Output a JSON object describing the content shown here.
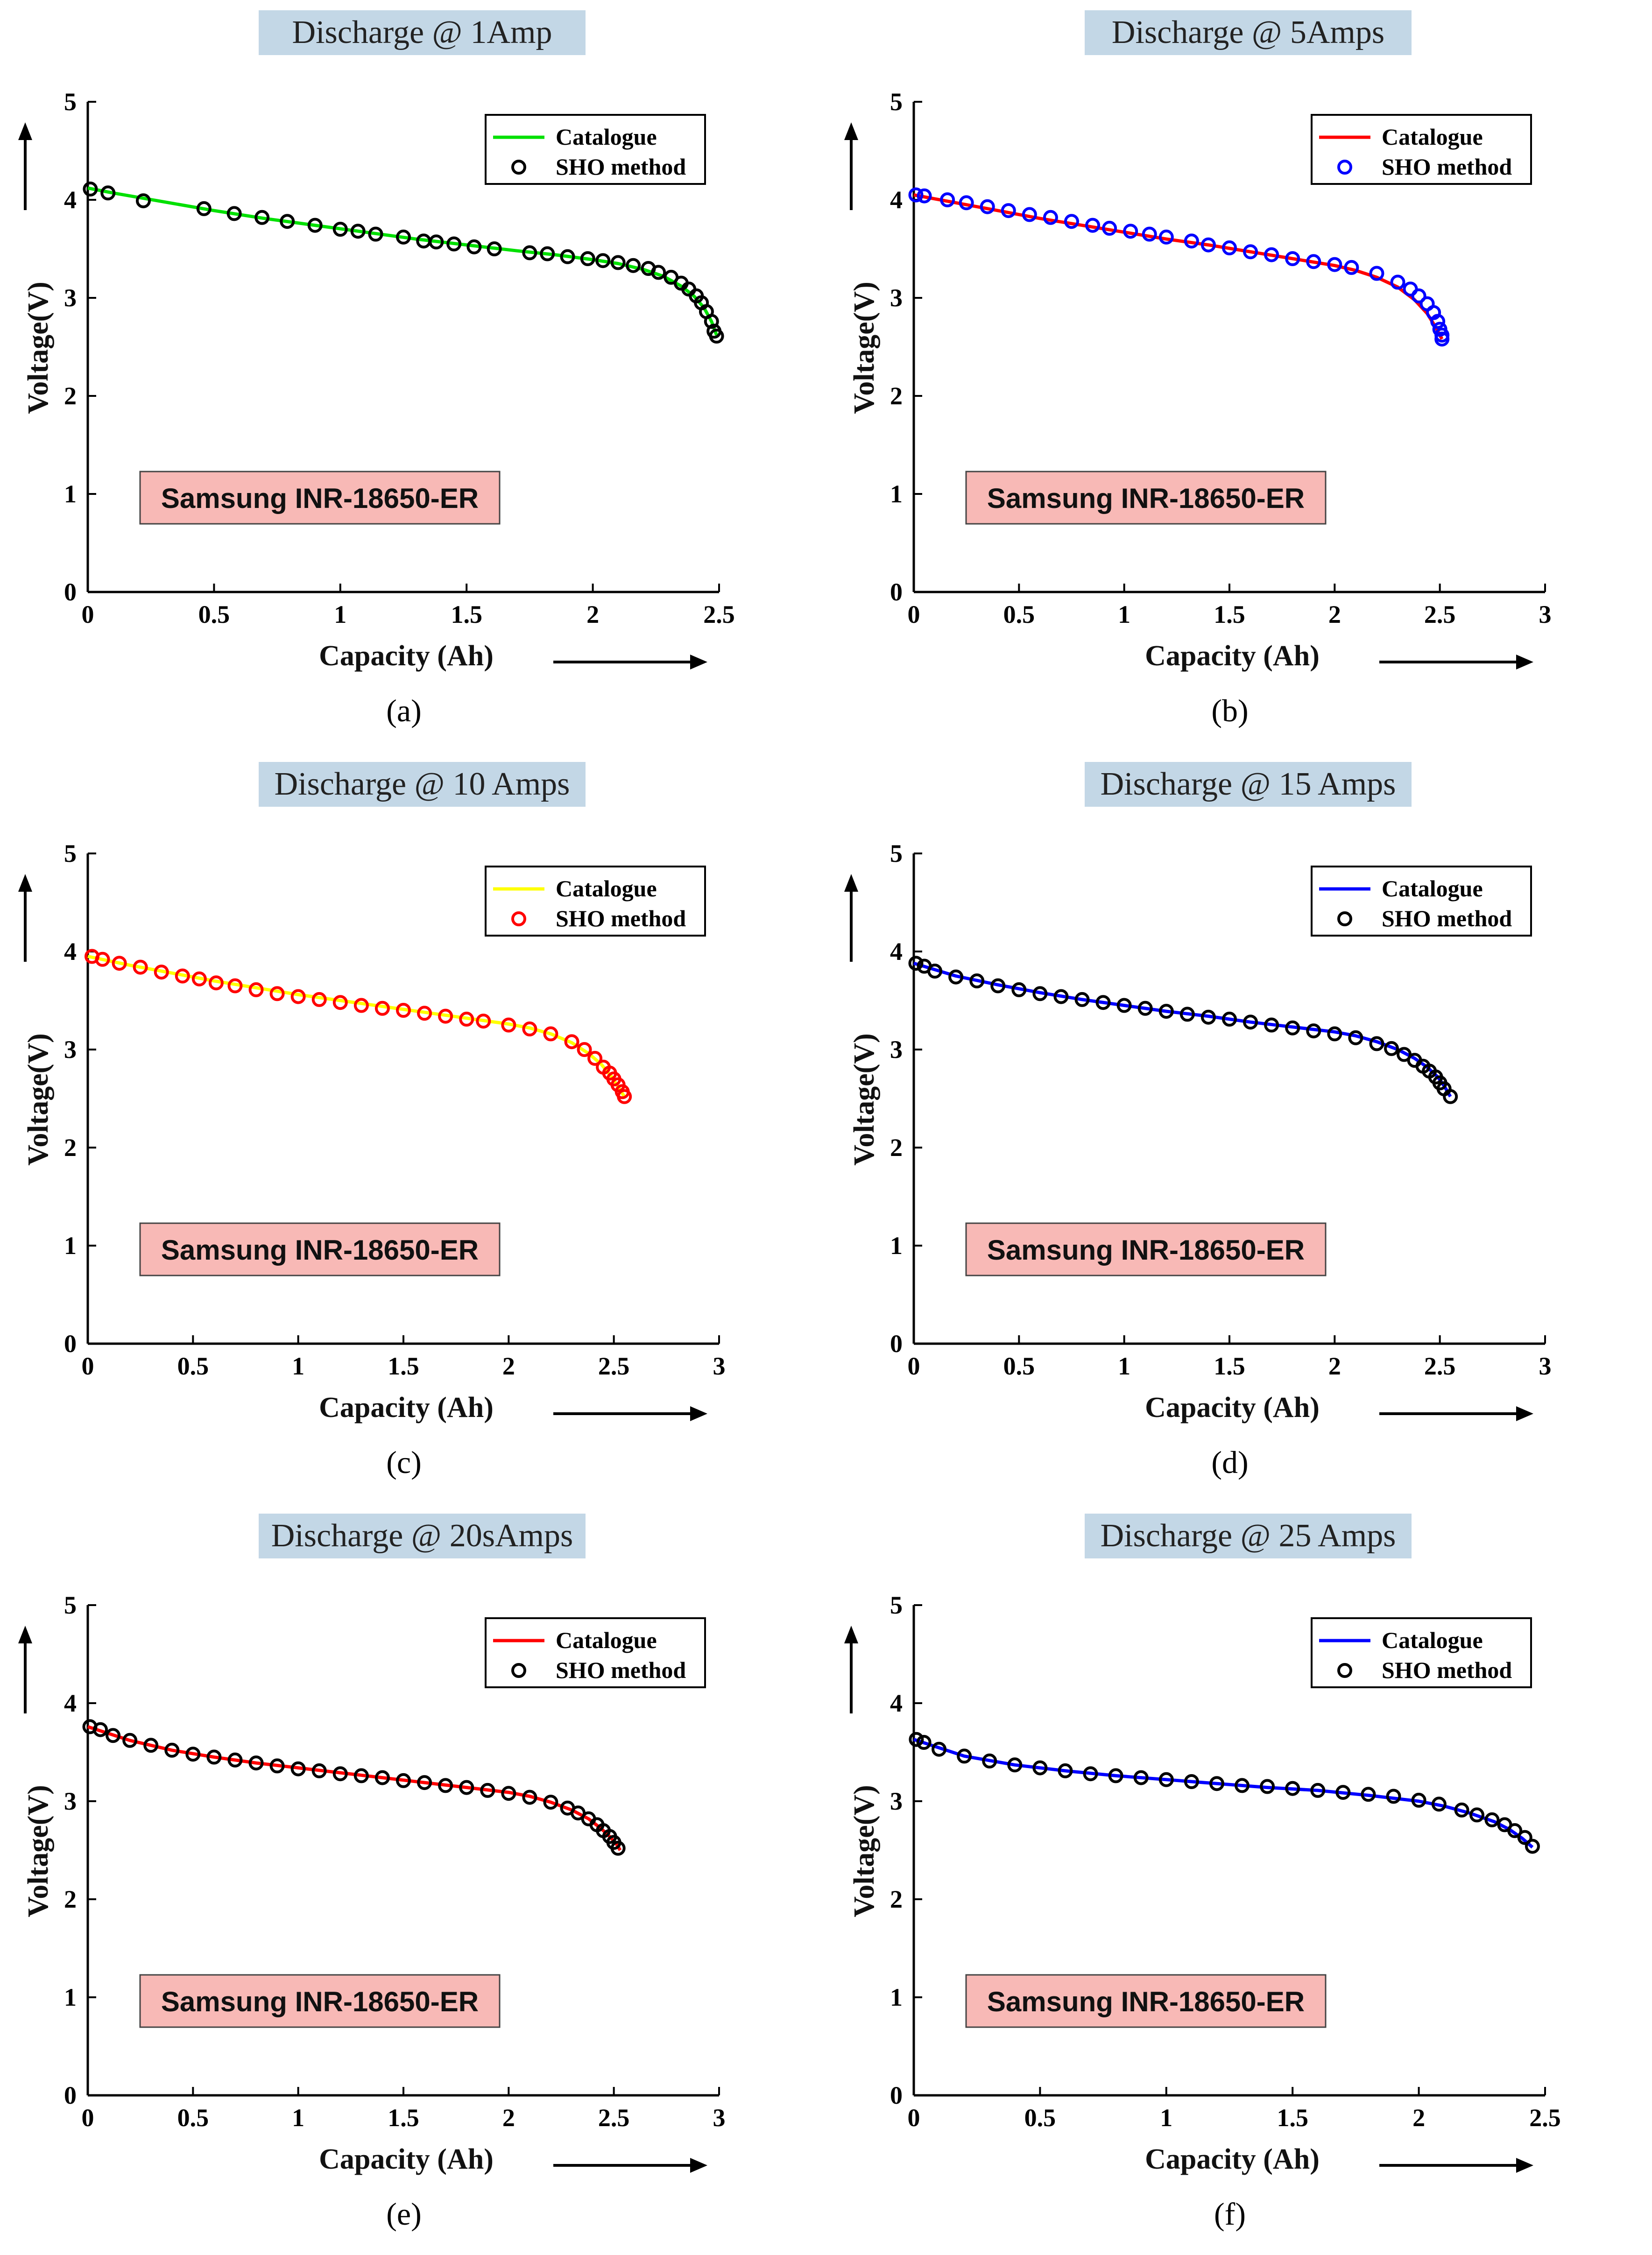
{
  "chart_data": [
    {
      "type": "line",
      "panel": "a",
      "caption": "(a)",
      "title": "Discharge @ 1Amp",
      "xlabel": "Capacity (Ah)",
      "ylabel": "Voltage(V)",
      "xlim": [
        0,
        2.5
      ],
      "ylim": [
        0,
        5
      ],
      "xticks": [
        0,
        0.5,
        1,
        1.5,
        2,
        2.5
      ],
      "xtick_labels": [
        "0",
        "0.5",
        "1",
        "1.5",
        "2",
        "2.5"
      ],
      "yticks": [
        0,
        1,
        2,
        3,
        4,
        5
      ],
      "ytick_labels": [
        "0",
        "1",
        "2",
        "3",
        "4",
        "5"
      ],
      "annotation": "Samsung INR-18650-ER",
      "legend_position": "top-right",
      "line_color": "#00e000",
      "marker_color": "#000000",
      "series": [
        {
          "name": "Catalogue",
          "x": [
            0,
            0.1,
            0.3,
            0.5,
            0.7,
            0.9,
            1.1,
            1.3,
            1.5,
            1.7,
            1.85,
            2.0,
            2.1,
            2.2,
            2.28,
            2.35,
            2.4,
            2.44,
            2.47,
            2.49
          ],
          "y": [
            4.12,
            4.07,
            3.98,
            3.89,
            3.81,
            3.74,
            3.67,
            3.6,
            3.54,
            3.48,
            3.44,
            3.39,
            3.35,
            3.29,
            3.22,
            3.12,
            3.02,
            2.9,
            2.76,
            2.62
          ]
        },
        {
          "name": "SHO method",
          "x": [
            0.01,
            0.08,
            0.22,
            0.46,
            0.58,
            0.69,
            0.79,
            0.9,
            1.0,
            1.07,
            1.14,
            1.25,
            1.33,
            1.38,
            1.45,
            1.53,
            1.61,
            1.75,
            1.82,
            1.9,
            1.98,
            2.04,
            2.1,
            2.16,
            2.22,
            2.26,
            2.31,
            2.35,
            2.38,
            2.41,
            2.43,
            2.45,
            2.47,
            2.48,
            2.49
          ],
          "y": [
            4.11,
            4.07,
            3.99,
            3.91,
            3.86,
            3.82,
            3.78,
            3.74,
            3.7,
            3.68,
            3.65,
            3.62,
            3.58,
            3.57,
            3.55,
            3.52,
            3.5,
            3.46,
            3.45,
            3.42,
            3.4,
            3.38,
            3.36,
            3.33,
            3.3,
            3.26,
            3.21,
            3.15,
            3.09,
            3.02,
            2.95,
            2.86,
            2.76,
            2.66,
            2.61
          ]
        }
      ]
    },
    {
      "type": "line",
      "panel": "b",
      "caption": "(b)",
      "title": "Discharge @ 5Amps",
      "xlabel": "Capacity (Ah)",
      "ylabel": "Voltage(V)",
      "xlim": [
        0,
        3
      ],
      "ylim": [
        0,
        5
      ],
      "xticks": [
        0,
        0.5,
        1,
        1.5,
        2,
        2.5,
        3
      ],
      "xtick_labels": [
        "0",
        "0.5",
        "1",
        "1.5",
        "2",
        "2.5",
        "3"
      ],
      "yticks": [
        0,
        1,
        2,
        3,
        4,
        5
      ],
      "ytick_labels": [
        "0",
        "1",
        "2",
        "3",
        "4",
        "5"
      ],
      "annotation": "Samsung INR-18650-ER",
      "legend_position": "top-right",
      "line_color": "#ff0000",
      "marker_color": "#0000ff",
      "series": [
        {
          "name": "Catalogue",
          "x": [
            0,
            0.2,
            0.4,
            0.6,
            0.8,
            1.0,
            1.2,
            1.4,
            1.6,
            1.8,
            2.0,
            2.1,
            2.2,
            2.3,
            2.38,
            2.44,
            2.48,
            2.5,
            2.51
          ],
          "y": [
            4.05,
            3.97,
            3.89,
            3.81,
            3.74,
            3.67,
            3.6,
            3.54,
            3.47,
            3.4,
            3.33,
            3.28,
            3.21,
            3.11,
            2.98,
            2.84,
            2.7,
            2.62,
            2.58
          ]
        },
        {
          "name": "SHO method",
          "x": [
            0.01,
            0.05,
            0.16,
            0.25,
            0.35,
            0.45,
            0.55,
            0.65,
            0.75,
            0.85,
            0.93,
            1.03,
            1.12,
            1.2,
            1.32,
            1.4,
            1.5,
            1.6,
            1.7,
            1.8,
            1.9,
            2.0,
            2.08,
            2.2,
            2.3,
            2.36,
            2.4,
            2.44,
            2.47,
            2.49,
            2.5,
            2.51,
            2.51
          ],
          "y": [
            4.05,
            4.04,
            4.0,
            3.97,
            3.93,
            3.89,
            3.85,
            3.82,
            3.78,
            3.74,
            3.71,
            3.68,
            3.65,
            3.62,
            3.58,
            3.54,
            3.51,
            3.47,
            3.44,
            3.4,
            3.37,
            3.34,
            3.31,
            3.25,
            3.16,
            3.09,
            3.02,
            2.94,
            2.85,
            2.76,
            2.68,
            2.62,
            2.58
          ]
        }
      ]
    },
    {
      "type": "line",
      "panel": "c",
      "caption": "(c)",
      "title": "Discharge @ 10 Amps",
      "xlabel": "Capacity (Ah)",
      "ylabel": "Voltage(V)",
      "xlim": [
        0,
        3
      ],
      "ylim": [
        0,
        5
      ],
      "xticks": [
        0,
        0.5,
        1,
        1.5,
        2,
        2.5,
        3
      ],
      "xtick_labels": [
        "0",
        "0.5",
        "1",
        "1.5",
        "2",
        "2.5",
        "3"
      ],
      "yticks": [
        0,
        1,
        2,
        3,
        4,
        5
      ],
      "ytick_labels": [
        "0",
        "1",
        "2",
        "3",
        "4",
        "5"
      ],
      "annotation": "Samsung INR-18650-ER",
      "legend_position": "top-right",
      "line_color": "#ffff00",
      "marker_color": "#ff0000",
      "series": [
        {
          "name": "Catalogue",
          "x": [
            0,
            0.2,
            0.4,
            0.6,
            0.8,
            1.0,
            1.2,
            1.4,
            1.6,
            1.8,
            2.0,
            2.1,
            2.2,
            2.3,
            2.38,
            2.44,
            2.49,
            2.52,
            2.55
          ],
          "y": [
            3.95,
            3.86,
            3.78,
            3.7,
            3.63,
            3.56,
            3.5,
            3.44,
            3.38,
            3.32,
            3.26,
            3.22,
            3.16,
            3.07,
            2.96,
            2.85,
            2.72,
            2.62,
            2.52
          ]
        },
        {
          "name": "SHO method",
          "x": [
            0.02,
            0.07,
            0.15,
            0.25,
            0.35,
            0.45,
            0.53,
            0.61,
            0.7,
            0.8,
            0.9,
            1.0,
            1.1,
            1.2,
            1.3,
            1.4,
            1.5,
            1.6,
            1.7,
            1.8,
            1.88,
            2.0,
            2.1,
            2.2,
            2.3,
            2.36,
            2.41,
            2.45,
            2.48,
            2.5,
            2.52,
            2.54,
            2.55
          ],
          "y": [
            3.95,
            3.92,
            3.88,
            3.84,
            3.79,
            3.75,
            3.72,
            3.68,
            3.65,
            3.61,
            3.57,
            3.54,
            3.51,
            3.48,
            3.45,
            3.42,
            3.4,
            3.37,
            3.34,
            3.31,
            3.29,
            3.25,
            3.21,
            3.16,
            3.08,
            3.0,
            2.91,
            2.82,
            2.76,
            2.7,
            2.64,
            2.57,
            2.52
          ]
        }
      ]
    },
    {
      "type": "line",
      "panel": "d",
      "caption": "(d)",
      "title": "Discharge @ 15 Amps",
      "xlabel": "Capacity (Ah)",
      "ylabel": "Voltage(V)",
      "xlim": [
        0,
        3
      ],
      "ylim": [
        0,
        5
      ],
      "xticks": [
        0,
        0.5,
        1,
        1.5,
        2,
        2.5,
        3
      ],
      "xtick_labels": [
        "0",
        "0.5",
        "1",
        "1.5",
        "2",
        "2.5",
        "3"
      ],
      "yticks": [
        0,
        1,
        2,
        3,
        4,
        5
      ],
      "ytick_labels": [
        "0",
        "1",
        "2",
        "3",
        "4",
        "5"
      ],
      "annotation": "Samsung INR-18650-ER",
      "legend_position": "top-right",
      "line_color": "#0000ff",
      "marker_color": "#000000",
      "series": [
        {
          "name": "Catalogue",
          "x": [
            0,
            0.2,
            0.4,
            0.6,
            0.8,
            1.0,
            1.2,
            1.4,
            1.6,
            1.8,
            2.0,
            2.1,
            2.2,
            2.3,
            2.38,
            2.44,
            2.49,
            2.52,
            2.55
          ],
          "y": [
            3.88,
            3.75,
            3.66,
            3.58,
            3.51,
            3.45,
            3.39,
            3.34,
            3.28,
            3.23,
            3.18,
            3.14,
            3.08,
            3.0,
            2.91,
            2.82,
            2.72,
            2.63,
            2.52
          ]
        },
        {
          "name": "SHO method",
          "x": [
            0.01,
            0.05,
            0.1,
            0.2,
            0.3,
            0.4,
            0.5,
            0.6,
            0.7,
            0.8,
            0.9,
            1.0,
            1.1,
            1.2,
            1.3,
            1.4,
            1.5,
            1.6,
            1.7,
            1.8,
            1.9,
            2.0,
            2.1,
            2.2,
            2.27,
            2.33,
            2.38,
            2.42,
            2.45,
            2.48,
            2.5,
            2.52,
            2.55
          ],
          "y": [
            3.88,
            3.85,
            3.8,
            3.74,
            3.7,
            3.65,
            3.61,
            3.57,
            3.54,
            3.51,
            3.48,
            3.45,
            3.42,
            3.39,
            3.36,
            3.33,
            3.31,
            3.28,
            3.25,
            3.22,
            3.19,
            3.16,
            3.12,
            3.06,
            3.01,
            2.95,
            2.89,
            2.83,
            2.78,
            2.72,
            2.66,
            2.6,
            2.52
          ]
        }
      ]
    },
    {
      "type": "line",
      "panel": "e",
      "caption": "(e)",
      "title": "Discharge @ 20sAmps",
      "xlabel": "Capacity (Ah)",
      "ylabel": "Voltage(V)",
      "xlim": [
        0,
        3
      ],
      "ylim": [
        0,
        5
      ],
      "xticks": [
        0,
        0.5,
        1,
        1.5,
        2,
        2.5,
        3
      ],
      "xtick_labels": [
        "0",
        "0.5",
        "1",
        "1.5",
        "2",
        "2.5",
        "3"
      ],
      "yticks": [
        0,
        1,
        2,
        3,
        4,
        5
      ],
      "ytick_labels": [
        "0",
        "1",
        "2",
        "3",
        "4",
        "5"
      ],
      "annotation": "Samsung INR-18650-ER",
      "legend_position": "top-right",
      "line_color": "#ff0000",
      "marker_color": "#000000",
      "series": [
        {
          "name": "Catalogue",
          "x": [
            0,
            0.2,
            0.4,
            0.6,
            0.8,
            1.0,
            1.2,
            1.4,
            1.6,
            1.8,
            2.0,
            2.1,
            2.2,
            2.3,
            2.38,
            2.44,
            2.48,
            2.51,
            2.53
          ],
          "y": [
            3.76,
            3.62,
            3.52,
            3.45,
            3.39,
            3.34,
            3.29,
            3.24,
            3.19,
            3.14,
            3.09,
            3.05,
            2.99,
            2.91,
            2.82,
            2.72,
            2.64,
            2.57,
            2.5
          ]
        },
        {
          "name": "SHO method",
          "x": [
            0.01,
            0.06,
            0.12,
            0.2,
            0.3,
            0.4,
            0.5,
            0.6,
            0.7,
            0.8,
            0.9,
            1.0,
            1.1,
            1.2,
            1.3,
            1.4,
            1.5,
            1.6,
            1.7,
            1.8,
            1.9,
            2.0,
            2.1,
            2.2,
            2.28,
            2.33,
            2.38,
            2.42,
            2.45,
            2.48,
            2.5,
            2.52
          ],
          "y": [
            3.76,
            3.73,
            3.67,
            3.62,
            3.57,
            3.52,
            3.48,
            3.45,
            3.42,
            3.39,
            3.36,
            3.33,
            3.31,
            3.28,
            3.26,
            3.24,
            3.21,
            3.19,
            3.16,
            3.14,
            3.11,
            3.08,
            3.04,
            2.99,
            2.93,
            2.88,
            2.82,
            2.76,
            2.7,
            2.64,
            2.58,
            2.52
          ]
        }
      ]
    },
    {
      "type": "line",
      "panel": "f",
      "caption": "(f)",
      "title": "Discharge @ 25 Amps",
      "xlabel": "Capacity (Ah)",
      "ylabel": "Voltage(V)",
      "xlim": [
        0,
        2.5
      ],
      "ylim": [
        0,
        5
      ],
      "xticks": [
        0,
        0.5,
        1,
        1.5,
        2,
        2.5
      ],
      "xtick_labels": [
        "0",
        "0.5",
        "1",
        "1.5",
        "2",
        "2.5"
      ],
      "yticks": [
        0,
        1,
        2,
        3,
        4,
        5
      ],
      "ytick_labels": [
        "0",
        "1",
        "2",
        "3",
        "4",
        "5"
      ],
      "annotation": "Samsung INR-18650-ER",
      "legend_position": "top-right",
      "line_color": "#0000ff",
      "marker_color": "#000000",
      "series": [
        {
          "name": "Catalogue",
          "x": [
            0,
            0.2,
            0.4,
            0.6,
            0.8,
            1.0,
            1.2,
            1.4,
            1.6,
            1.8,
            2.0,
            2.1,
            2.2,
            2.3,
            2.36,
            2.41,
            2.45
          ],
          "y": [
            3.63,
            3.46,
            3.37,
            3.31,
            3.26,
            3.22,
            3.18,
            3.14,
            3.11,
            3.06,
            3.0,
            2.95,
            2.88,
            2.79,
            2.71,
            2.62,
            2.53
          ]
        },
        {
          "name": "SHO method",
          "x": [
            0.01,
            0.04,
            0.1,
            0.2,
            0.3,
            0.4,
            0.5,
            0.6,
            0.7,
            0.8,
            0.9,
            1.0,
            1.1,
            1.2,
            1.3,
            1.4,
            1.5,
            1.6,
            1.7,
            1.8,
            1.9,
            2.0,
            2.08,
            2.17,
            2.23,
            2.29,
            2.34,
            2.38,
            2.42,
            2.45
          ],
          "y": [
            3.63,
            3.6,
            3.53,
            3.46,
            3.41,
            3.37,
            3.34,
            3.31,
            3.28,
            3.26,
            3.24,
            3.22,
            3.2,
            3.18,
            3.16,
            3.15,
            3.13,
            3.11,
            3.09,
            3.07,
            3.05,
            3.01,
            2.97,
            2.91,
            2.86,
            2.81,
            2.76,
            2.7,
            2.63,
            2.54
          ]
        }
      ]
    }
  ]
}
